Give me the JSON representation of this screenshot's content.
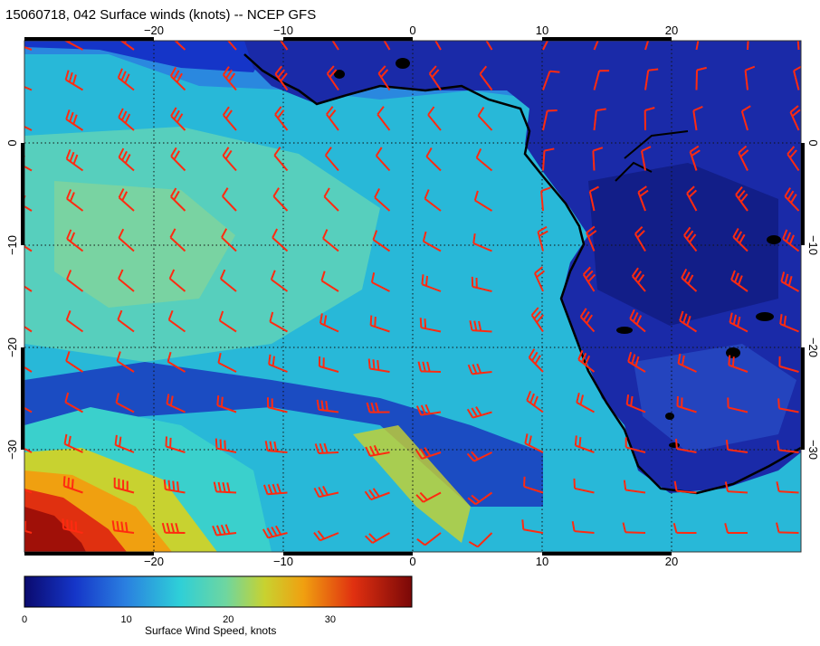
{
  "title": "15060718, 042 Surface winds (knots) -- NCEP GFS",
  "map": {
    "lon_range": [
      -30,
      30
    ],
    "lat_range": [
      -40,
      10
    ],
    "lon_ticks": [
      -20,
      -10,
      0,
      10,
      20
    ],
    "lat_ticks": [
      0,
      -10,
      -20,
      -30
    ],
    "gridlines": true,
    "land_color": "#1a2aa8",
    "barb_color": "#ff2a10",
    "coastline_color": "#000000"
  },
  "colorbar": {
    "label": "Surface Wind Speed, knots",
    "min": 0,
    "max": 38,
    "ticks": [
      0,
      10,
      20,
      30
    ],
    "colors": [
      "#0a0a6e",
      "#1535c8",
      "#2a7fe0",
      "#2ecfd8",
      "#6ed6a0",
      "#c8d230",
      "#f0a010",
      "#e03010",
      "#7a0808"
    ]
  }
}
